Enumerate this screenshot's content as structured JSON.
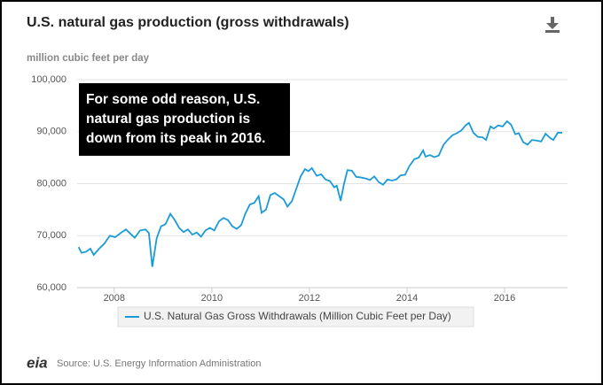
{
  "chart_data": {
    "type": "line",
    "title": "U.S. natural gas production (gross withdrawals)",
    "y_label": "million cubic feet per day",
    "annotation": "For some odd reason, U.S. natural gas production is down from its peak in 2016.",
    "source": "Source: U.S. Energy Information Administration",
    "logo": "eia",
    "xlim": [
      2007.24,
      2017.29
    ],
    "xticks": [
      2008,
      2010,
      2012,
      2014,
      2016
    ],
    "ylim": [
      60000,
      100000
    ],
    "yticks": [
      {
        "value": 60000,
        "label": "60,000"
      },
      {
        "value": 70000,
        "label": "70,000"
      },
      {
        "value": 80000,
        "label": "80,000"
      },
      {
        "value": 90000,
        "label": "90,000"
      },
      {
        "value": 100000,
        "label": "100,000"
      }
    ],
    "grid": true,
    "legend": "bottom",
    "x": [
      2007.27,
      2007.33,
      2007.42,
      2007.51,
      2007.58,
      2007.69,
      2007.8,
      2007.91,
      2008.02,
      2008.13,
      2008.24,
      2008.35,
      2008.42,
      2008.53,
      2008.64,
      2008.71,
      2008.78,
      2008.87,
      2008.96,
      2009.05,
      2009.15,
      2009.24,
      2009.33,
      2009.42,
      2009.51,
      2009.6,
      2009.69,
      2009.78,
      2009.87,
      2009.96,
      2010.05,
      2010.15,
      2010.24,
      2010.33,
      2010.42,
      2010.51,
      2010.6,
      2010.69,
      2010.78,
      2010.87,
      2010.96,
      2011.02,
      2011.11,
      2011.2,
      2011.29,
      2011.38,
      2011.47,
      2011.55,
      2011.64,
      2011.73,
      2011.82,
      2011.91,
      2011.98,
      2012.05,
      2012.15,
      2012.24,
      2012.33,
      2012.42,
      2012.51,
      2012.56,
      2012.64,
      2012.71,
      2012.78,
      2012.87,
      2012.96,
      2013.05,
      2013.15,
      2013.24,
      2013.33,
      2013.42,
      2013.51,
      2013.6,
      2013.69,
      2013.78,
      2013.87,
      2013.96,
      2014.05,
      2014.15,
      2014.24,
      2014.33,
      2014.38,
      2014.47,
      2014.56,
      2014.65,
      2014.75,
      2014.84,
      2014.93,
      2015.02,
      2015.11,
      2015.2,
      2015.27,
      2015.36,
      2015.45,
      2015.55,
      2015.62,
      2015.71,
      2015.78,
      2015.87,
      2015.96,
      2016.05,
      2016.13,
      2016.22,
      2016.29,
      2016.38,
      2016.47,
      2016.56,
      2016.65,
      2016.75,
      2016.84,
      2016.93,
      2017.0,
      2017.09,
      2017.18
    ],
    "series": [
      {
        "name": "U.S. Natural Gas Gross Withdrawals (Million Cubic Feet per Day)",
        "color": "#1a9bd7",
        "values": [
          67800,
          66700,
          66900,
          67500,
          66300,
          67500,
          68500,
          70000,
          69700,
          70500,
          71200,
          70200,
          69600,
          71000,
          71200,
          70500,
          64000,
          69500,
          71800,
          72200,
          74200,
          73000,
          71500,
          70700,
          71200,
          70200,
          70600,
          69800,
          71000,
          71500,
          71000,
          72800,
          73400,
          73000,
          71800,
          71300,
          72000,
          74300,
          76000,
          76300,
          77600,
          74400,
          75000,
          77800,
          78200,
          77600,
          77000,
          75600,
          76600,
          79000,
          81400,
          82800,
          82400,
          83000,
          81500,
          81800,
          80800,
          80500,
          79300,
          79600,
          76700,
          80000,
          82600,
          82500,
          81300,
          81200,
          81000,
          80700,
          81400,
          80300,
          79800,
          80800,
          80600,
          80800,
          81600,
          81700,
          83400,
          84700,
          85000,
          86400,
          85200,
          85500,
          85100,
          85400,
          87500,
          88500,
          89300,
          89700,
          90200,
          91200,
          91700,
          89800,
          89000,
          88900,
          88400,
          91000,
          90600,
          91200,
          91000,
          92000,
          91400,
          89500,
          89700,
          88000,
          87500,
          88400,
          88300,
          88100,
          89600,
          88800,
          88400,
          89800,
          89800
        ]
      }
    ]
  }
}
